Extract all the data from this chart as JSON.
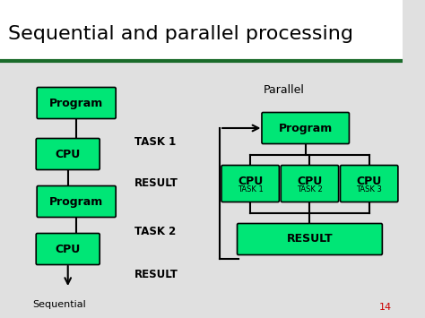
{
  "title": "Sequential and parallel processing",
  "background_color": "#e0e0e0",
  "title_bg": "#ffffff",
  "title_color": "#000000",
  "box_color": "#00e676",
  "box_border_color": "#000000",
  "slide_number": "14",
  "slide_number_color": "#cc0000",
  "title_line_color": "#1a6b2a",
  "seq_label": "Sequential",
  "par_label": "Parallel"
}
